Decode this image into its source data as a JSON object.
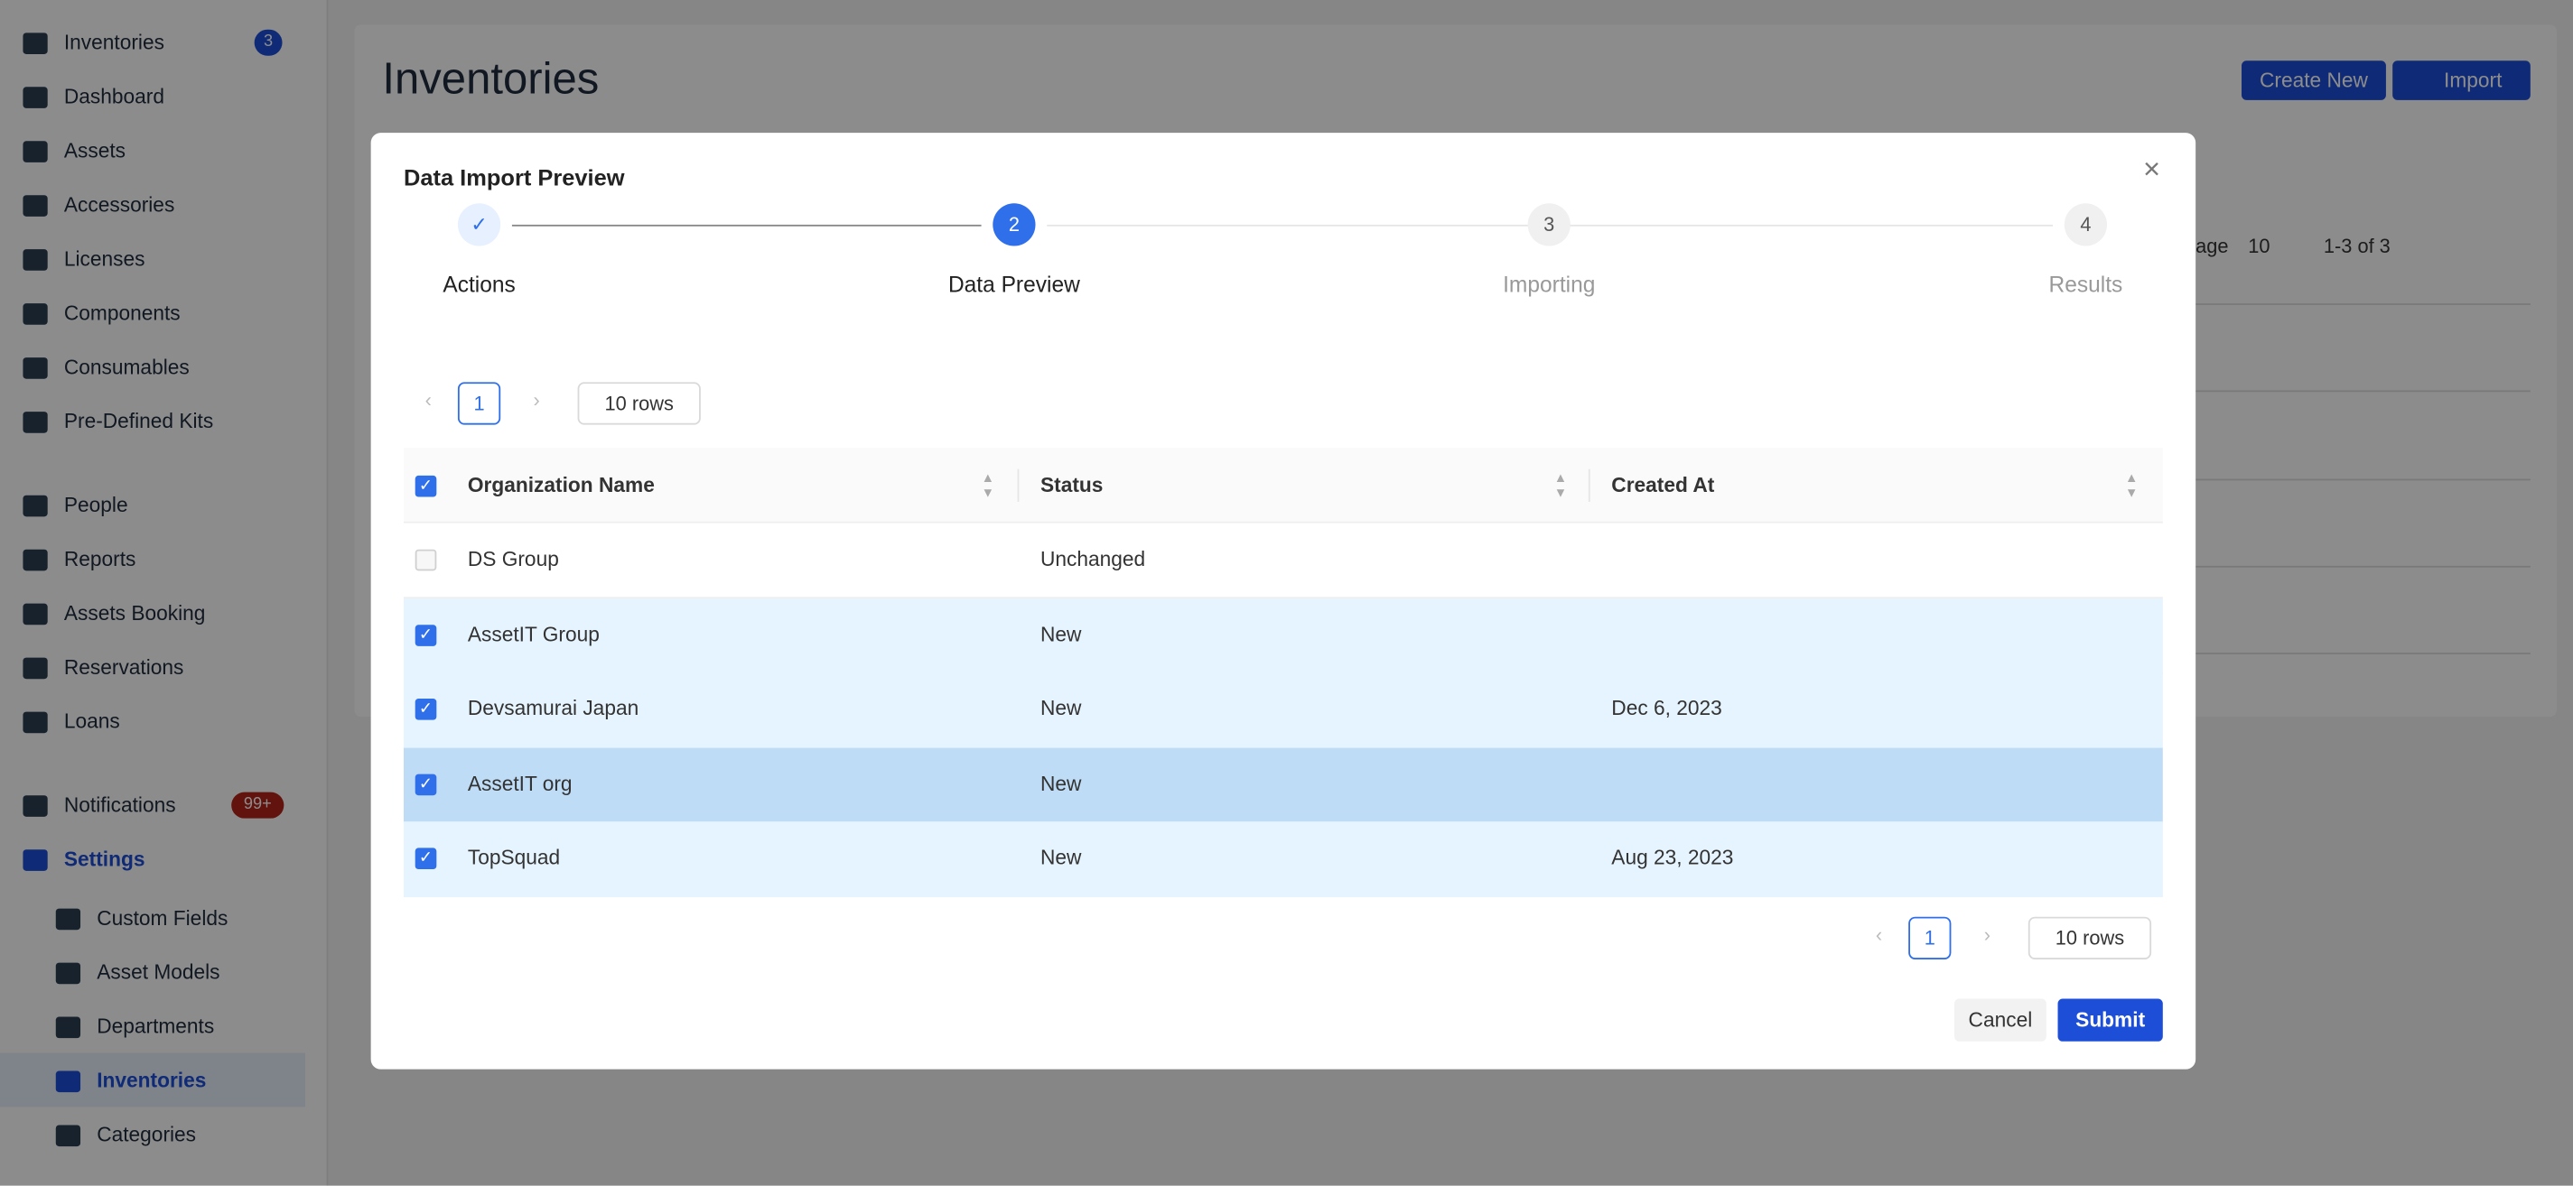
{
  "sidebar": {
    "items": [
      {
        "label": "Inventories",
        "badge": "3"
      },
      {
        "label": "Dashboard"
      },
      {
        "label": "Assets"
      },
      {
        "label": "Accessories"
      },
      {
        "label": "Licenses"
      },
      {
        "label": "Components"
      },
      {
        "label": "Consumables"
      },
      {
        "label": "Pre-Defined Kits"
      },
      {
        "label": "People"
      },
      {
        "label": "Reports"
      },
      {
        "label": "Assets Booking"
      },
      {
        "label": "Reservations"
      },
      {
        "label": "Loans"
      },
      {
        "label": "Notifications",
        "badge": "99+"
      },
      {
        "label": "Settings"
      }
    ],
    "sub_items": [
      {
        "label": "Custom Fields"
      },
      {
        "label": "Asset Models"
      },
      {
        "label": "Departments"
      },
      {
        "label": "Inventories",
        "active": true
      },
      {
        "label": "Categories"
      }
    ]
  },
  "header": {
    "title": "Inventories",
    "buttons": [
      "Create New",
      "Import"
    ]
  },
  "background_toolbar": {
    "page_label": "age",
    "page_size": "10",
    "range": "1-3 of 3"
  },
  "modal": {
    "title": "Data Import Preview",
    "steps": [
      {
        "label": "Actions",
        "state": "done"
      },
      {
        "number": "2",
        "label": "Data Preview",
        "state": "current"
      },
      {
        "number": "3",
        "label": "Importing",
        "state": "pending"
      },
      {
        "number": "4",
        "label": "Results",
        "state": "pending"
      }
    ],
    "pagination": {
      "page": "1",
      "rows": "10 rows"
    },
    "table": {
      "columns": [
        "Organization Name",
        "Status",
        "Created At"
      ],
      "rows": [
        {
          "cells": [
            "DS Group",
            "Unchanged",
            ""
          ],
          "checked": false
        },
        {
          "cells": [
            "AssetIT Group",
            "New",
            ""
          ],
          "checked": true
        },
        {
          "cells": [
            "Devsamurai Japan",
            "New",
            "Dec 6, 2023"
          ],
          "checked": true
        },
        {
          "cells": [
            "AssetIT org",
            "New",
            ""
          ],
          "checked": true,
          "hover": true
        },
        {
          "cells": [
            "TopSquad",
            "New",
            "Aug 23, 2023"
          ],
          "checked": true
        }
      ]
    },
    "footer_pagination": {
      "page": "1",
      "rows": "10 rows"
    },
    "buttons": [
      "Cancel",
      "Submit"
    ]
  }
}
